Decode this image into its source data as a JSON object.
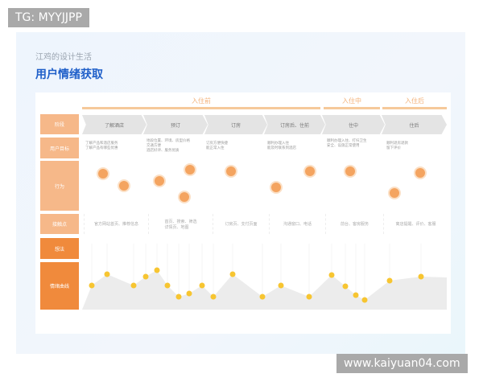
{
  "watermarks": {
    "top": "TG: MYYJJPP",
    "bottom": "www.kaiyuan04.com"
  },
  "header": {
    "subtitle": "江鸡的设计生活",
    "title": "用户情绪获取"
  },
  "rows": [
    "阶段",
    "用户目标",
    "行为",
    "接触点",
    "想法",
    "情绪曲线"
  ],
  "stages": [
    "入住前",
    "入住中",
    "入住后"
  ],
  "steps": [
    "了解酒店",
    "预订",
    "订房",
    "订房后、住前",
    "住中",
    "住后"
  ],
  "goals": [
    "了解产品和酒店服务\n了解产品有哪些优惠",
    "地段位置、环境、房型价格\n交通方便\n酒店好评、服务优质",
    "订房方便快捷\n能正常入住",
    "顺利办理入住\n能及时联系到酒店",
    "顺利办理入住、打扫卫生\n安全、设施正常使用",
    "顺利退房退款\n留下评价"
  ],
  "touchpoints": [
    "官方网站首页、推荐信息",
    "首页、搜索、筛选\n详情页、地图",
    "订房页、支付页面",
    "沟通窗口、电话",
    "前台、客房服务",
    "离店提醒、评价、客服"
  ],
  "colors": {
    "accent": "#f08a3c",
    "light": "#f6b889",
    "title": "#1f5fc9"
  },
  "emotion_icon": "smiley-face-icon"
}
